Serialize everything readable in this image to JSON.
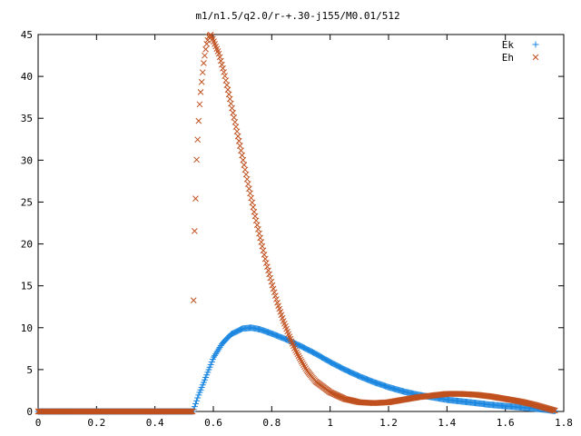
{
  "chart_data": {
    "type": "scatter",
    "title": "m1/n1.5/q2.0/r-+.30-j155/M0.01/512",
    "xlabel": "",
    "ylabel": "",
    "xlim": [
      0,
      1.8
    ],
    "ylim": [
      0,
      45
    ],
    "x_ticks": [
      "0",
      "0.2",
      "0.4",
      "0.6",
      "0.8",
      "1",
      "1.2",
      "1.4",
      "1.6",
      "1.8"
    ],
    "y_ticks": [
      "0",
      "5",
      "10",
      "15",
      "20",
      "25",
      "30",
      "35",
      "40",
      "45"
    ],
    "grid": false,
    "legend_position": "top-right",
    "series": [
      {
        "name": "Ek",
        "marker": "plus",
        "color": "#1a86e0",
        "points": [
          [
            0.0,
            0
          ],
          [
            0.1,
            0
          ],
          [
            0.2,
            0
          ],
          [
            0.3,
            0
          ],
          [
            0.4,
            0
          ],
          [
            0.5,
            0
          ],
          [
            0.53,
            0
          ],
          [
            0.55,
            2.0
          ],
          [
            0.58,
            4.6
          ],
          [
            0.6,
            6.4
          ],
          [
            0.63,
            8.1
          ],
          [
            0.66,
            9.2
          ],
          [
            0.7,
            9.9
          ],
          [
            0.73,
            10.0
          ],
          [
            0.76,
            9.8
          ],
          [
            0.8,
            9.3
          ],
          [
            0.85,
            8.6
          ],
          [
            0.9,
            7.8
          ],
          [
            0.95,
            6.9
          ],
          [
            1.0,
            5.9
          ],
          [
            1.05,
            5.0
          ],
          [
            1.1,
            4.2
          ],
          [
            1.15,
            3.5
          ],
          [
            1.2,
            2.9
          ],
          [
            1.25,
            2.4
          ],
          [
            1.3,
            2.0
          ],
          [
            1.35,
            1.7
          ],
          [
            1.4,
            1.4
          ],
          [
            1.45,
            1.2
          ],
          [
            1.5,
            1.0
          ],
          [
            1.55,
            0.8
          ],
          [
            1.6,
            0.65
          ],
          [
            1.65,
            0.5
          ],
          [
            1.7,
            0.35
          ],
          [
            1.74,
            0.2
          ],
          [
            1.77,
            0.05
          ]
        ]
      },
      {
        "name": "Eh",
        "marker": "cross",
        "color": "#c0501f",
        "points": [
          [
            0.0,
            0
          ],
          [
            0.1,
            0
          ],
          [
            0.2,
            0
          ],
          [
            0.3,
            0
          ],
          [
            0.4,
            0
          ],
          [
            0.5,
            0
          ],
          [
            0.53,
            0
          ],
          [
            0.532,
            12.2
          ],
          [
            0.535,
            20.6
          ],
          [
            0.54,
            26.2
          ],
          [
            0.543,
            30.4
          ],
          [
            0.548,
            33.6
          ],
          [
            0.552,
            36.2
          ],
          [
            0.557,
            38.3
          ],
          [
            0.562,
            40.0
          ],
          [
            0.567,
            41.6
          ],
          [
            0.572,
            42.9
          ],
          [
            0.578,
            44.0
          ],
          [
            0.585,
            44.8
          ],
          [
            0.592,
            45.0
          ],
          [
            0.6,
            44.3
          ],
          [
            0.62,
            42.6
          ],
          [
            0.64,
            40.0
          ],
          [
            0.66,
            36.8
          ],
          [
            0.68,
            33.6
          ],
          [
            0.7,
            30.3
          ],
          [
            0.72,
            27.0
          ],
          [
            0.74,
            23.8
          ],
          [
            0.76,
            20.8
          ],
          [
            0.78,
            17.9
          ],
          [
            0.8,
            15.3
          ],
          [
            0.82,
            12.9
          ],
          [
            0.84,
            10.8
          ],
          [
            0.86,
            9.0
          ],
          [
            0.88,
            7.4
          ],
          [
            0.9,
            6.1
          ],
          [
            0.92,
            4.9
          ],
          [
            0.95,
            3.6
          ],
          [
            1.0,
            2.3
          ],
          [
            1.05,
            1.5
          ],
          [
            1.1,
            1.1
          ],
          [
            1.15,
            1.0
          ],
          [
            1.2,
            1.1
          ],
          [
            1.25,
            1.4
          ],
          [
            1.3,
            1.7
          ],
          [
            1.35,
            1.9
          ],
          [
            1.4,
            2.1
          ],
          [
            1.45,
            2.1
          ],
          [
            1.5,
            2.0
          ],
          [
            1.55,
            1.8
          ],
          [
            1.6,
            1.5
          ],
          [
            1.65,
            1.2
          ],
          [
            1.7,
            0.8
          ],
          [
            1.74,
            0.4
          ],
          [
            1.77,
            0.1
          ]
        ]
      }
    ]
  }
}
